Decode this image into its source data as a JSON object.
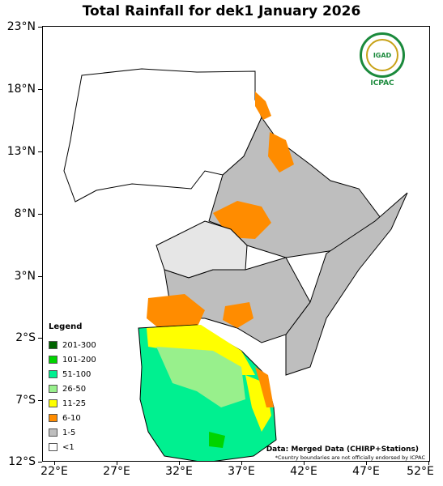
{
  "map": {
    "title": "Total Rainfall for dek1 January 2026",
    "lat_ticks": [
      "23°N",
      "18°N",
      "13°N",
      "8°N",
      "3°N",
      "2°S",
      "7°S",
      "12°S"
    ],
    "lon_ticks": [
      "22°E",
      "27°E",
      "32°E",
      "37°E",
      "42°E",
      "47°E",
      "52°E"
    ],
    "extent": {
      "lon_min": 21,
      "lon_max": 52,
      "lat_min": -12,
      "lat_max": 23
    },
    "legend": {
      "title": "Legend",
      "items": [
        {
          "label": "201-300",
          "color": "#006400"
        },
        {
          "label": "101-200",
          "color": "#00d400"
        },
        {
          "label": "51-100",
          "color": "#00f090"
        },
        {
          "label": "26-50",
          "color": "#98f08c"
        },
        {
          "label": "11-25",
          "color": "#ffff00"
        },
        {
          "label": "6-10",
          "color": "#ff8c00"
        },
        {
          "label": "1-5",
          "color": "#bebebe"
        },
        {
          "label": "<1",
          "color": "#ffffff"
        }
      ]
    },
    "source": "Data: Merged Data (CHIRP+Stations)",
    "note": "*Country boundaries are not officially endorsed by ICPAC",
    "logo": {
      "top_text": "IGAD",
      "bottom_text": "ICPAC"
    }
  }
}
